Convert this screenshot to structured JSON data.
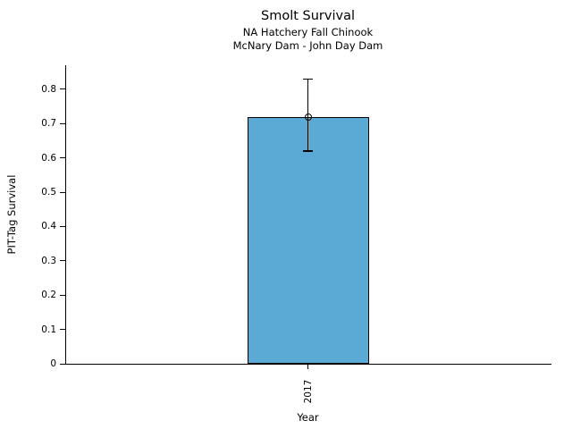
{
  "chart_data": {
    "type": "bar",
    "title": "Smolt Survival",
    "subtitle": [
      "NA Hatchery Fall Chinook",
      "McNary Dam - John Day Dam"
    ],
    "xlabel": "Year",
    "ylabel": "PIT-Tag Survival",
    "categories": [
      "2017"
    ],
    "values": [
      0.72
    ],
    "error_low": [
      0.62
    ],
    "error_high": [
      0.83
    ],
    "marker": "open-circle",
    "yticks": [
      0,
      0.1,
      0.2,
      0.3,
      0.4,
      0.5,
      0.6,
      0.7,
      0.8
    ],
    "ytick_labels": [
      "0",
      "0.1",
      "0.2",
      "0.3",
      "0.4",
      "0.5",
      "0.6",
      "0.7",
      "0.8"
    ],
    "ylim": [
      0,
      0.87
    ],
    "grid": false,
    "legend": "none",
    "bar_color": "#5BA9D5",
    "bar_edge_color": "#000000",
    "axis_color": "#000000",
    "text_color": "#000000"
  }
}
